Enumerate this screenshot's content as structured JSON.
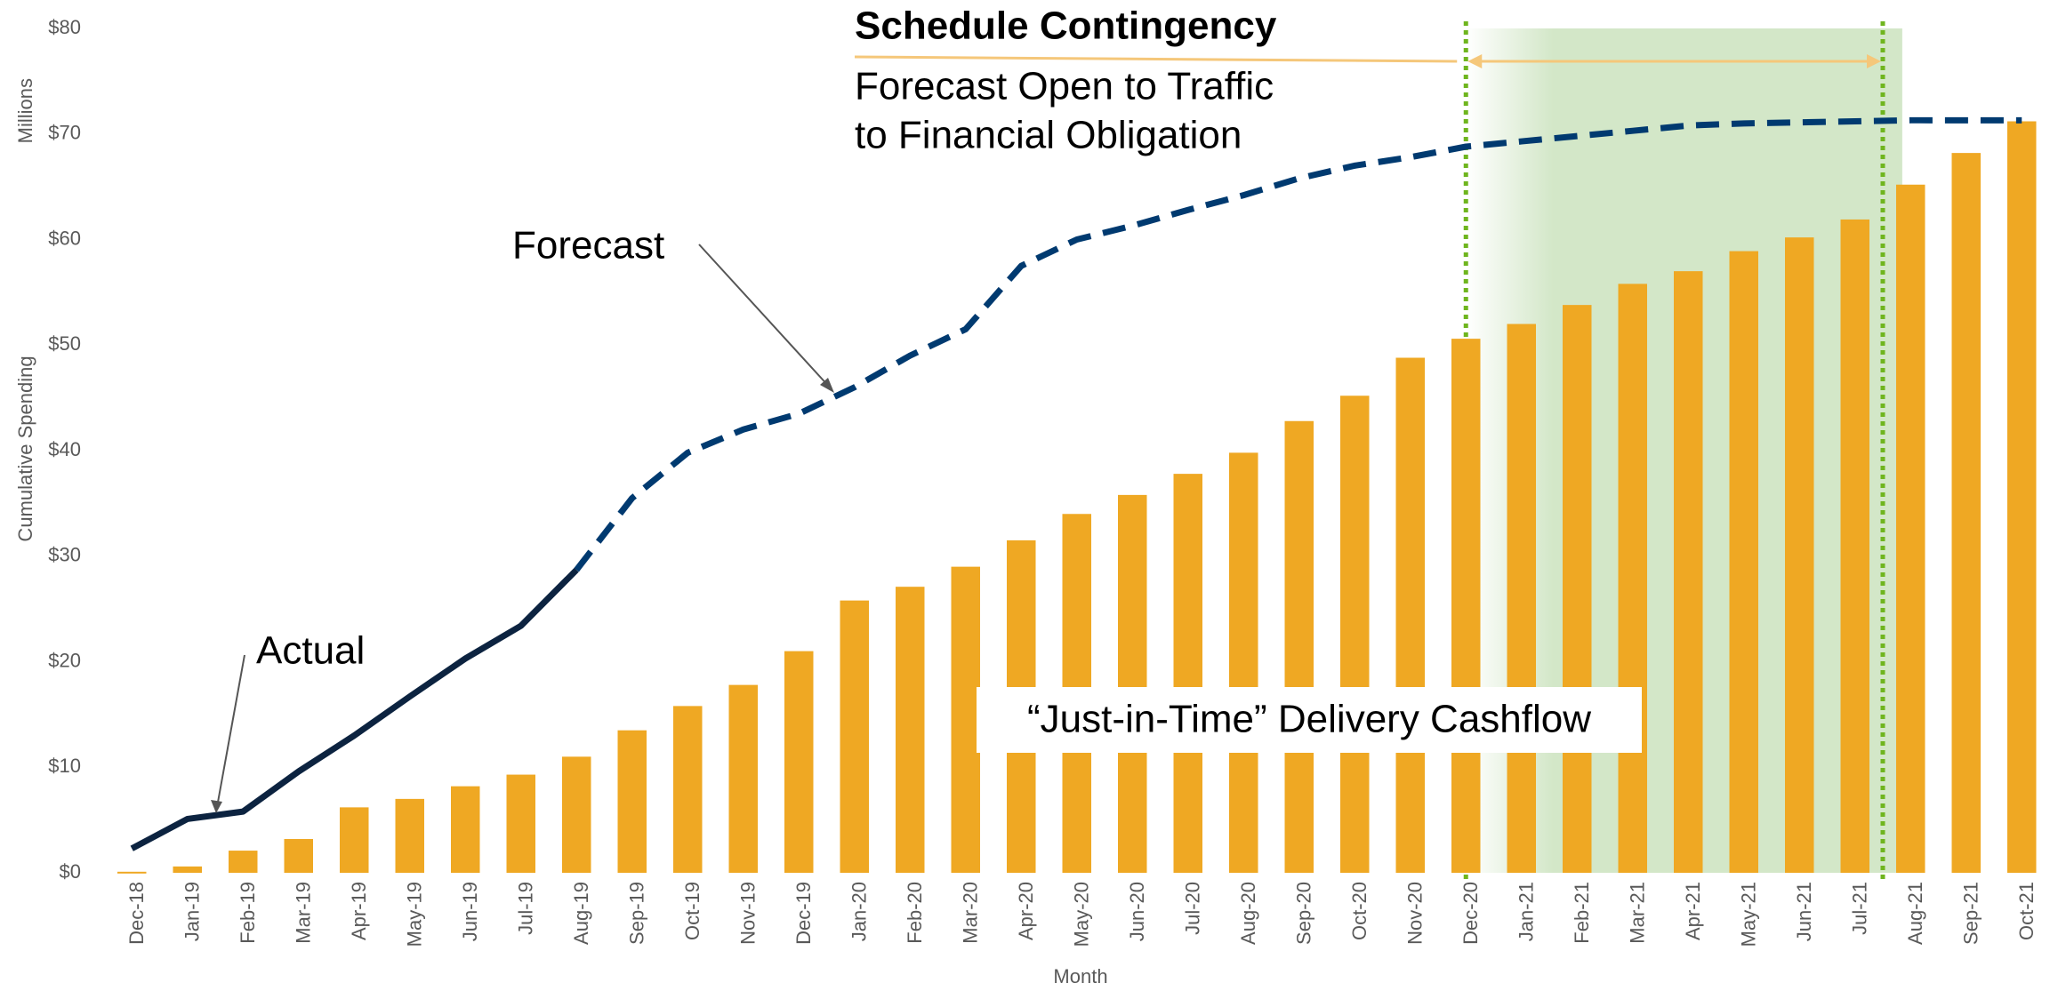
{
  "chart_data": {
    "type": "bar",
    "y_label": "Cumulative Spending",
    "y_unit": "Millions",
    "x_label": "Month",
    "categories": [
      "Dec-18",
      "Jan-19",
      "Feb-19",
      "Mar-19",
      "Apr-19",
      "May-19",
      "Jun-19",
      "Jul-19",
      "Aug-19",
      "Sep-19",
      "Oct-19",
      "Nov-19",
      "Dec-19",
      "Jan-20",
      "Feb-20",
      "Mar-20",
      "Apr-20",
      "May-20",
      "Jun-20",
      "Jul-20",
      "Aug-20",
      "Sep-20",
      "Oct-20",
      "Nov-20",
      "Dec-20",
      "Jan-21",
      "Feb-21",
      "Mar-21",
      "Apr-21",
      "May-21",
      "Jun-21",
      "Jul-21",
      "Aug-21",
      "Sep-21",
      "Oct-21"
    ],
    "series": [
      {
        "name": "“Just-in-Time” Delivery Cashflow",
        "type": "bar",
        "color": "#efa823",
        "values": [
          0.1,
          0.6,
          2.1,
          3.2,
          6.2,
          7.0,
          8.2,
          9.3,
          11.0,
          13.5,
          15.8,
          17.8,
          21.0,
          25.8,
          27.1,
          29.0,
          31.5,
          34.0,
          35.8,
          37.8,
          39.8,
          42.8,
          45.2,
          48.8,
          50.6,
          52.0,
          53.8,
          55.8,
          57.0,
          58.9,
          60.2,
          61.9,
          65.2,
          68.2,
          71.2
        ]
      },
      {
        "name": "Actual",
        "type": "line",
        "color": "#0c2340",
        "dashed": false,
        "values": [
          2.3,
          5.1,
          5.8,
          9.6,
          13.0,
          16.7,
          20.3,
          23.4,
          28.7,
          null,
          null,
          null,
          null,
          null,
          null,
          null,
          null,
          null,
          null,
          null,
          null,
          null,
          null,
          null,
          null,
          null,
          null,
          null,
          null,
          null,
          null,
          null,
          null,
          null,
          null
        ]
      },
      {
        "name": "Forecast",
        "type": "line",
        "color": "#003a70",
        "dashed": true,
        "values": [
          null,
          null,
          null,
          null,
          null,
          null,
          null,
          null,
          28.7,
          35.5,
          39.8,
          42.0,
          43.5,
          46.0,
          49.0,
          51.5,
          57.5,
          60.0,
          61.3,
          62.8,
          64.2,
          65.8,
          67.0,
          67.8,
          68.8,
          69.3,
          69.8,
          70.3,
          70.8,
          71.0,
          71.1,
          71.2,
          71.3,
          71.3,
          71.3
        ]
      }
    ],
    "ylim": [
      0,
      80
    ],
    "yticks": [
      {
        "value": 0,
        "label": "$0"
      },
      {
        "value": 10,
        "label": "$10"
      },
      {
        "value": 20,
        "label": "$20"
      },
      {
        "value": 30,
        "label": "$30"
      },
      {
        "value": 40,
        "label": "$40"
      },
      {
        "value": 50,
        "label": "$50"
      },
      {
        "value": 60,
        "label": "$60"
      },
      {
        "value": 70,
        "label": "$70"
      },
      {
        "value": 80,
        "label": "$80"
      }
    ],
    "grid": false,
    "annotations": {
      "contingency_title": "Schedule Contingency",
      "contingency_line1": "Forecast Open to Traffic",
      "contingency_line2": "to Financial Obligation"
    }
  }
}
